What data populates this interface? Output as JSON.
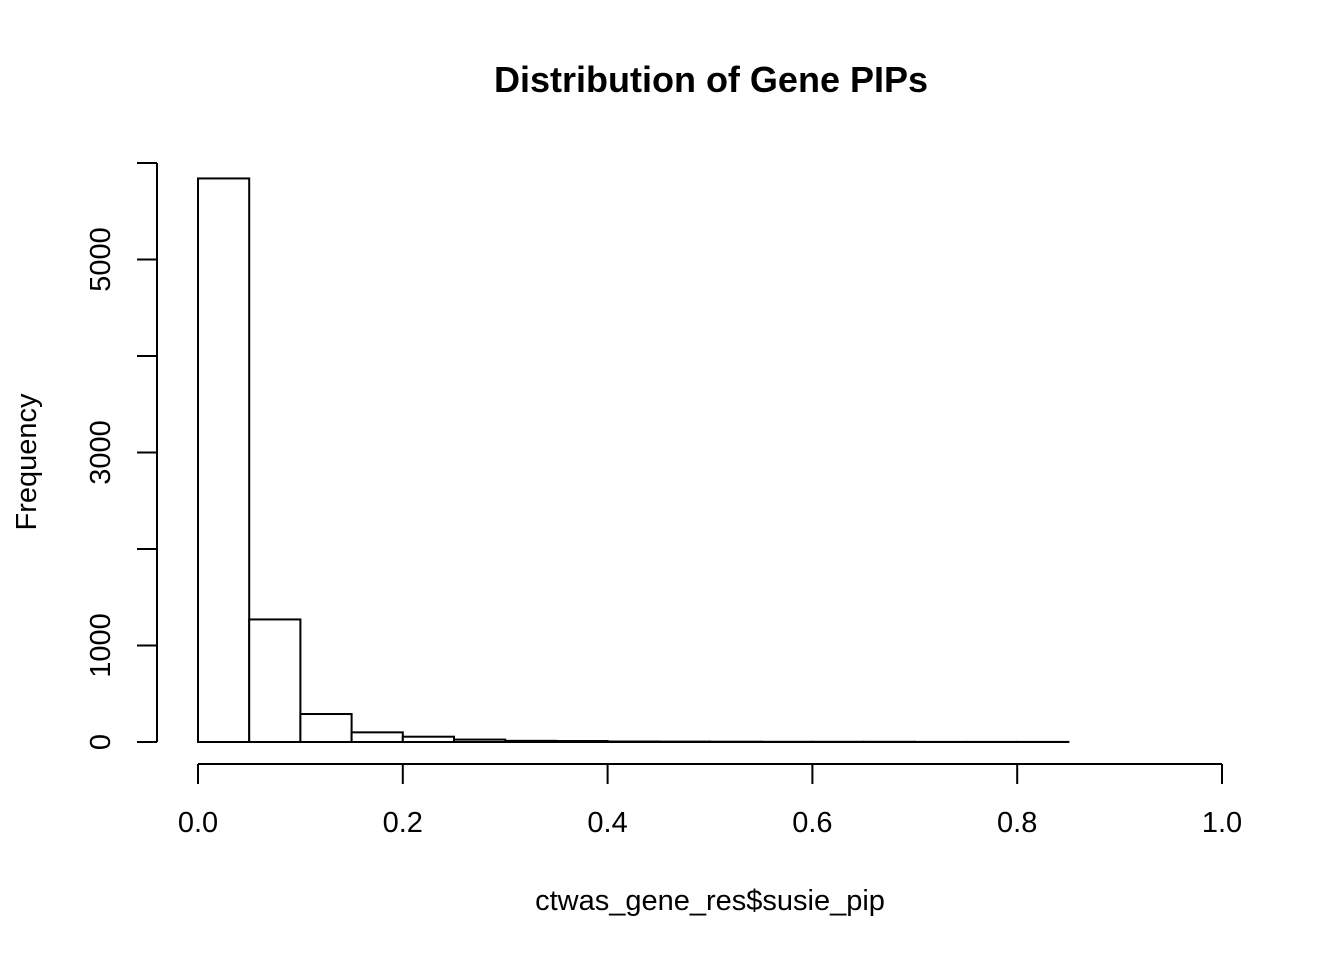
{
  "chart_data": {
    "type": "bar",
    "title": "Distribution of Gene PIPs",
    "xlabel": "ctwas_gene_res$susie_pip",
    "ylabel": "Frequency",
    "xlim": [
      0,
      1
    ],
    "ylim": [
      0,
      6000
    ],
    "x_ticks": [
      "0.0",
      "0.2",
      "0.4",
      "0.6",
      "0.8",
      "1.0"
    ],
    "y_ticks": [
      "0",
      "1000",
      "3000",
      "5000"
    ],
    "y_tick_values_all": [
      0,
      1000,
      2000,
      3000,
      4000,
      5000,
      6000
    ],
    "bin_edges": [
      0.0,
      0.05,
      0.1,
      0.15,
      0.2,
      0.25,
      0.3,
      0.35,
      0.4,
      0.45,
      0.5,
      0.55,
      0.6,
      0.65,
      0.7,
      0.75,
      0.8,
      0.85
    ],
    "values": [
      5840,
      1270,
      290,
      100,
      55,
      25,
      12,
      10,
      5,
      4,
      3,
      2,
      2,
      2,
      1,
      1,
      1
    ],
    "grid": false,
    "legend": "none"
  }
}
